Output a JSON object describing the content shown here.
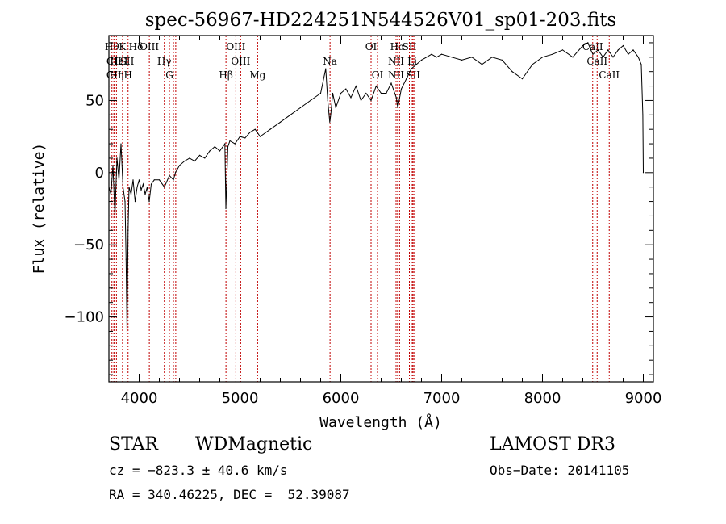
{
  "chart_data": {
    "type": "line",
    "title": "spec-56967-HD224251N544526V01_sp01-203.fits",
    "xlabel": "Wavelength (Å)",
    "ylabel": "Flux (relative)",
    "xlim": [
      3700,
      9100
    ],
    "ylim": [
      -145,
      95
    ],
    "xticks": [
      4000,
      5000,
      6000,
      7000,
      8000,
      9000
    ],
    "yticks": [
      -100,
      -50,
      0,
      50
    ],
    "grid": false,
    "series": [
      {
        "x": [
          3700,
          3720,
          3740,
          3760,
          3780,
          3800,
          3820,
          3840,
          3860,
          3870,
          3880,
          3890,
          3900,
          3920,
          3940,
          3960,
          3980,
          4000,
          4020,
          4040,
          4060,
          4080,
          4100,
          4120,
          4150,
          4200,
          4250,
          4300,
          4340,
          4360,
          4400,
          4450,
          4500,
          4550,
          4600,
          4650,
          4700,
          4750,
          4800,
          4850,
          4860,
          4880,
          4900,
          4950,
          5000,
          5050,
          5100,
          5150,
          5200,
          5300,
          5400,
          5500,
          5600,
          5700,
          5800,
          5850,
          5870,
          5890,
          5900,
          5920,
          5950,
          6000,
          6050,
          6100,
          6150,
          6200,
          6250,
          6300,
          6350,
          6400,
          6450,
          6500,
          6550,
          6565,
          6600,
          6650,
          6700,
          6750,
          6800,
          6850,
          6900,
          6950,
          7000,
          7100,
          7200,
          7300,
          7400,
          7500,
          7600,
          7700,
          7800,
          7900,
          8000,
          8100,
          8200,
          8300,
          8400,
          8450,
          8480,
          8500,
          8550,
          8600,
          8650,
          8700,
          8750,
          8800,
          8850,
          8900,
          8950,
          8980,
          8995,
          9000
        ],
        "y": [
          -10,
          -15,
          5,
          -30,
          10,
          -5,
          20,
          -10,
          -20,
          -60,
          -110,
          -40,
          -10,
          -15,
          -5,
          -20,
          -10,
          -5,
          -12,
          -8,
          -15,
          -10,
          -20,
          -8,
          -5,
          -5,
          -10,
          -2,
          -5,
          0,
          5,
          8,
          10,
          8,
          12,
          10,
          15,
          18,
          15,
          20,
          -25,
          18,
          22,
          20,
          25,
          24,
          28,
          30,
          25,
          30,
          35,
          40,
          45,
          50,
          55,
          72,
          50,
          35,
          40,
          55,
          45,
          55,
          58,
          52,
          60,
          50,
          55,
          50,
          60,
          55,
          55,
          62,
          52,
          45,
          58,
          65,
          72,
          75,
          78,
          80,
          82,
          80,
          82,
          80,
          78,
          80,
          75,
          80,
          78,
          70,
          65,
          75,
          80,
          82,
          85,
          80,
          88,
          90,
          85,
          82,
          85,
          80,
          85,
          80,
          85,
          88,
          82,
          85,
          80,
          75,
          40,
          0
        ]
      }
    ],
    "line_marks": [
      {
        "x": 3730,
        "label": "Hθ",
        "row": 0
      },
      {
        "x": 3750,
        "label": "CII",
        "row": 1
      },
      {
        "x": 3750,
        "label": "CII",
        "row": 2
      },
      {
        "x": 3775,
        "label": "Hη",
        "row": 2
      },
      {
        "x": 3800,
        "label": "HeI",
        "row": 1
      },
      {
        "x": 3835,
        "label": "K",
        "row": 0
      },
      {
        "x": 3880,
        "label": "SII",
        "row": 1
      },
      {
        "x": 3890,
        "label": "H",
        "row": 2
      },
      {
        "x": 3968,
        "label": "Hδ",
        "row": 0
      },
      {
        "x": 4101,
        "label": "OIII",
        "row": 0
      },
      {
        "x": 4250,
        "label": "Hγ",
        "row": 1
      },
      {
        "x": 4300,
        "label": "G",
        "row": 2
      },
      {
        "x": 4340,
        "label": "",
        "row": -1
      },
      {
        "x": 4363,
        "label": "",
        "row": -1
      },
      {
        "x": 4861,
        "label": "Hβ",
        "row": 2
      },
      {
        "x": 4959,
        "label": "OIII",
        "row": 0
      },
      {
        "x": 5007,
        "label": "OIII",
        "row": 1
      },
      {
        "x": 5175,
        "label": "Mg",
        "row": 2
      },
      {
        "x": 5893,
        "label": "Na",
        "row": 1
      },
      {
        "x": 6300,
        "label": "OI",
        "row": 0
      },
      {
        "x": 6364,
        "label": "OI",
        "row": 2
      },
      {
        "x": 6548,
        "label": "NII",
        "row": 1
      },
      {
        "x": 6548,
        "label": "NII",
        "row": 2
      },
      {
        "x": 6563,
        "label": "Hα",
        "row": 0
      },
      {
        "x": 6583,
        "label": "",
        "row": -1
      },
      {
        "x": 6680,
        "label": "SII",
        "row": 0
      },
      {
        "x": 6708,
        "label": "Li",
        "row": 1
      },
      {
        "x": 6717,
        "label": "SII",
        "row": 2
      },
      {
        "x": 6731,
        "label": "",
        "row": -1
      },
      {
        "x": 8498,
        "label": "CaII",
        "row": 0
      },
      {
        "x": 8542,
        "label": "CaII",
        "row": 1
      },
      {
        "x": 8662,
        "label": "CaII",
        "row": 2
      }
    ]
  },
  "info": {
    "class_label": "STAR",
    "subclass": "WDMagnetic",
    "survey": "LAMOST DR3",
    "cz": "cz = −823.3 ± 40.6 km/s",
    "obs_date": "Obs−Date: 20141105",
    "radec": "RA = 340.46225, DEC =  52.39087"
  },
  "colors": {
    "spectrum": "#000000",
    "line_marker": "#c00000",
    "axes": "#000000"
  }
}
